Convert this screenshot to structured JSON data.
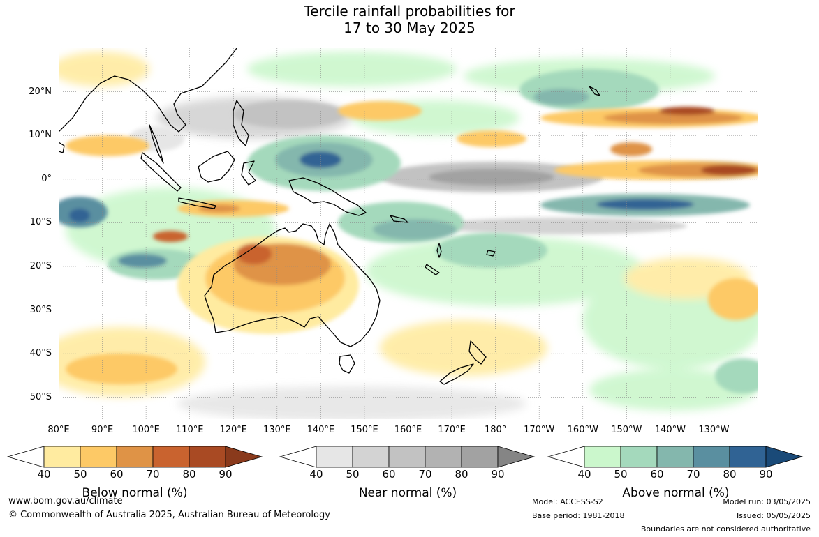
{
  "title": {
    "line1": "Tercile rainfall probabilities for",
    "line2": "17 to 30 May 2025"
  },
  "map": {
    "lat_labels": [
      "20°N",
      "10°N",
      "0°",
      "10°S",
      "20°S",
      "30°S",
      "40°S",
      "50°S"
    ],
    "lon_labels": [
      "80°E",
      "90°E",
      "100°E",
      "110°E",
      "120°E",
      "130°E",
      "140°E",
      "150°E",
      "160°E",
      "170°E",
      "180°",
      "170°W",
      "160°W",
      "150°W",
      "140°W",
      "130°W"
    ],
    "lat_values": [
      20,
      10,
      0,
      -10,
      -20,
      -30,
      -40,
      -50
    ],
    "lon_values": [
      80,
      90,
      100,
      110,
      120,
      130,
      140,
      150,
      160,
      170,
      180,
      190,
      200,
      210,
      220,
      230
    ],
    "extent": {
      "lon_min": 80,
      "lon_max": 240,
      "lat_min": -55,
      "lat_max": 30
    },
    "gridlines": true
  },
  "legends": [
    {
      "title": "Below normal (%)",
      "ticks": [
        "40",
        "50",
        "60",
        "70",
        "80",
        "90"
      ],
      "colors": [
        "#ffffff",
        "#ffeba0",
        "#fdc966",
        "#df9346",
        "#c9632f",
        "#a94a23",
        "#8a3a1c"
      ]
    },
    {
      "title": "Near normal (%)",
      "ticks": [
        "40",
        "50",
        "60",
        "70",
        "80",
        "90"
      ],
      "colors": [
        "#ffffff",
        "#e6e6e6",
        "#d3d3d3",
        "#c2c2c2",
        "#b2b2b2",
        "#a2a2a2",
        "#858585"
      ]
    },
    {
      "title": "Above normal (%)",
      "ticks": [
        "40",
        "50",
        "60",
        "70",
        "80",
        "90"
      ],
      "colors": [
        "#ffffff",
        "#cbf7cc",
        "#a4d9bc",
        "#84b7ad",
        "#5a8fa0",
        "#306394",
        "#1a4a78"
      ]
    }
  ],
  "footer": {
    "site": "www.bom.gov.au/climate",
    "copyright": "© Commonwealth of Australia 2025, Australian Bureau of Meteorology",
    "model": "Model: ACCESS-S2",
    "base_period": "Base period: 1981-2018",
    "model_run": "Model run: 03/05/2025",
    "issued": "Issued: 05/05/2025",
    "disclaimer": "Boundaries are not considered authoritative"
  }
}
